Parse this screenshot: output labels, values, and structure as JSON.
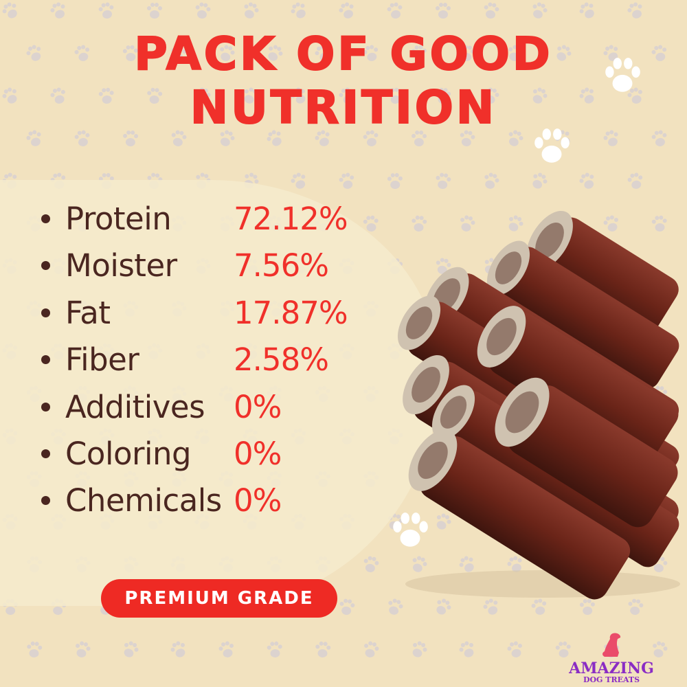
{
  "title": {
    "line1": "PACK OF GOOD",
    "line2": "NUTRITION"
  },
  "nutrition": [
    {
      "label": "Protein",
      "value": "72.12%"
    },
    {
      "label": "Moister",
      "value": "7.56%"
    },
    {
      "label": "Fat",
      "value": "17.87%"
    },
    {
      "label": "Fiber",
      "value": "2.58%"
    },
    {
      "label": "Additives",
      "value": "0%"
    },
    {
      "label": "Coloring",
      "value": "0%"
    },
    {
      "label": "Chemicals",
      "value": "0%"
    }
  ],
  "badge": "PREMIUM GRADE",
  "logo": {
    "main": "AMAZING",
    "sub": "DOG TREATS"
  },
  "colors": {
    "background": "#f2e2bf",
    "accent": "#f0302a",
    "text": "#4a2620",
    "logo": "#8a2cc4"
  }
}
